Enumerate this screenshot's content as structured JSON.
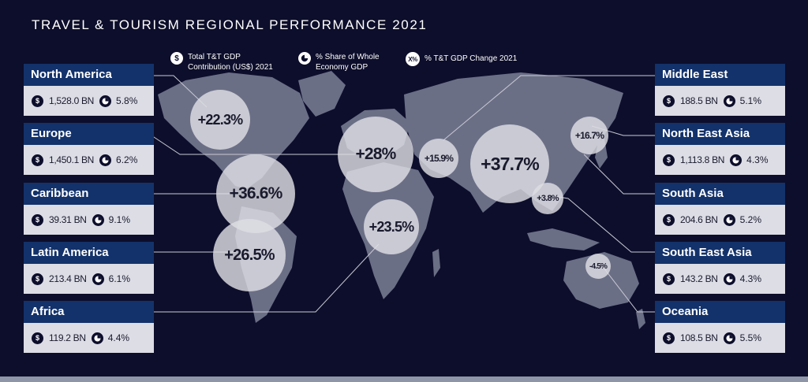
{
  "title": "TRAVEL & TOURISM REGIONAL PERFORMANCE 2021",
  "legend": {
    "gdp": {
      "icon": "dollar-icon",
      "label_line1": "Total T&T GDP",
      "label_line2": "Contribution (US$) 2021"
    },
    "share": {
      "icon": "pie-icon",
      "label_line1": "% Share of Whole",
      "label_line2": "Economy GDP"
    },
    "change": {
      "icon": "percent-change-icon",
      "icon_text": "X%",
      "label": "% T&T GDP Change 2021"
    }
  },
  "icons": {
    "dollar_glyph": "$"
  },
  "regions": {
    "north_america": {
      "name": "North America",
      "gdp": "1,528.0 BN",
      "share": "5.8%",
      "change": "+22.3%"
    },
    "europe": {
      "name": "Europe",
      "gdp": "1,450.1 BN",
      "share": "6.2%",
      "change": "+28%"
    },
    "caribbean": {
      "name": "Caribbean",
      "gdp": "39.31 BN",
      "share": "9.1%",
      "change": "+36.6%"
    },
    "latin_america": {
      "name": "Latin America",
      "gdp": "213.4 BN",
      "share": "6.1%",
      "change": "+26.5%"
    },
    "africa": {
      "name": "Africa",
      "gdp": "119.2 BN",
      "share": "4.4%",
      "change": "+23.5%"
    },
    "middle_east": {
      "name": "Middle East",
      "gdp": "188.5 BN",
      "share": "5.1%",
      "change": "+15.9%"
    },
    "north_east_asia": {
      "name": "North East Asia",
      "gdp": "1,113.8 BN",
      "share": "4.3%",
      "change": "+37.7%"
    },
    "south_asia": {
      "name": "South Asia",
      "gdp": "204.6 BN",
      "share": "5.2%",
      "change": "+16.7%"
    },
    "south_east_asia": {
      "name": "South East Asia",
      "gdp": "143.2 BN",
      "share": "4.3%",
      "change": "+3.8%"
    },
    "oceania": {
      "name": "Oceania",
      "gdp": "108.5 BN",
      "share": "5.5%",
      "change": "-4.5%"
    }
  },
  "colors": {
    "background": "#0d0e2b",
    "card_header": "#13326b",
    "card_body": "#dcdde5",
    "map_land": "#6b6f86",
    "bubble": "#dedee4"
  }
}
